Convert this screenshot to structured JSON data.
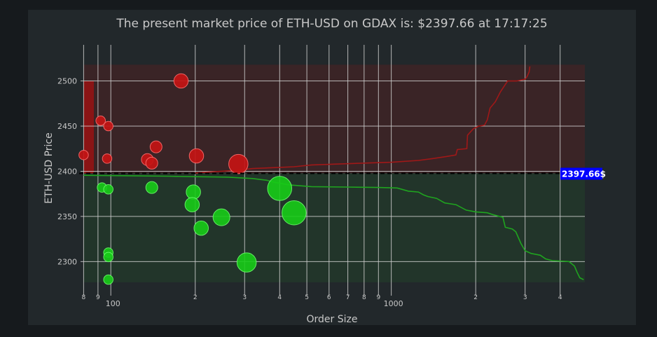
{
  "chart_data": {
    "type": "scatter",
    "title": "The present market price of ETH-USD on GDAX is: $2397.66 at 17:17:25",
    "xlabel": "Order Size",
    "ylabel": "ETH-USD Price",
    "x_scale": "log",
    "x_range": [
      78,
      4900
    ],
    "y_range": [
      2270,
      2540
    ],
    "y_ticks": [
      2300,
      2350,
      2400,
      2450,
      2500
    ],
    "x_major_ticks": [
      {
        "value": 100,
        "label": "100"
      },
      {
        "value": 1000,
        "label": "1000"
      }
    ],
    "x_minor_ticks": [
      {
        "value": 80,
        "label": "8"
      },
      {
        "value": 90,
        "label": "9"
      },
      {
        "value": 200,
        "label": "2"
      },
      {
        "value": 300,
        "label": "3"
      },
      {
        "value": 400,
        "label": "4"
      },
      {
        "value": 500,
        "label": "5"
      },
      {
        "value": 600,
        "label": "6"
      },
      {
        "value": 700,
        "label": "7"
      },
      {
        "value": 800,
        "label": "8"
      },
      {
        "value": 900,
        "label": "9"
      },
      {
        "value": 2000,
        "label": "2"
      },
      {
        "value": 3000,
        "label": "3"
      },
      {
        "value": 4000,
        "label": "4"
      }
    ],
    "market_price": 2397.66,
    "price_label": "2397.66$",
    "colors": {
      "ask": "#c41414",
      "ask_line": "#a01818",
      "bid": "#18cc18",
      "bid_line": "#1fa41f",
      "ask_zone": "#3a2426",
      "bid_zone": "#22352a",
      "label_bg": "#0000ff"
    },
    "ask_zone": {
      "y": [
        2397.66,
        2518
      ],
      "x": [
        80,
        4900
      ]
    },
    "bid_zone": {
      "y": [
        2277,
        2397.66
      ],
      "x": [
        80,
        4900
      ]
    },
    "ask_bar": {
      "x": [
        80,
        87
      ],
      "y": [
        2397.66,
        2500
      ]
    },
    "asks": [
      {
        "x": 80,
        "y": 2418,
        "size": 1
      },
      {
        "x": 92,
        "y": 2456,
        "size": 1
      },
      {
        "x": 98,
        "y": 2450,
        "size": 1
      },
      {
        "x": 97,
        "y": 2414,
        "size": 1
      },
      {
        "x": 135,
        "y": 2413,
        "size": 2
      },
      {
        "x": 140,
        "y": 2409,
        "size": 2
      },
      {
        "x": 145,
        "y": 2427,
        "size": 2
      },
      {
        "x": 178,
        "y": 2500,
        "size": 3
      },
      {
        "x": 202,
        "y": 2417,
        "size": 3
      },
      {
        "x": 285,
        "y": 2408,
        "size": 5
      }
    ],
    "bids": [
      {
        "x": 93,
        "y": 2382,
        "size": 1
      },
      {
        "x": 98,
        "y": 2380,
        "size": 1
      },
      {
        "x": 98,
        "y": 2310,
        "size": 1
      },
      {
        "x": 98,
        "y": 2305,
        "size": 1
      },
      {
        "x": 98,
        "y": 2280,
        "size": 1
      },
      {
        "x": 140,
        "y": 2382,
        "size": 2
      },
      {
        "x": 197,
        "y": 2377,
        "size": 3
      },
      {
        "x": 195,
        "y": 2363,
        "size": 3
      },
      {
        "x": 210,
        "y": 2337,
        "size": 3
      },
      {
        "x": 248,
        "y": 2349,
        "size": 4
      },
      {
        "x": 305,
        "y": 2299,
        "size": 5
      },
      {
        "x": 400,
        "y": 2381,
        "size": 7
      },
      {
        "x": 450,
        "y": 2354,
        "size": 7
      }
    ],
    "ask_line": [
      [
        195,
        2397.7
      ],
      [
        220,
        2399
      ],
      [
        280,
        2401
      ],
      [
        320,
        2403
      ],
      [
        380,
        2404
      ],
      [
        450,
        2405
      ],
      [
        520,
        2407
      ],
      [
        650,
        2408
      ],
      [
        800,
        2409
      ],
      [
        1000,
        2410
      ],
      [
        1250,
        2412
      ],
      [
        1400,
        2414
      ],
      [
        1550,
        2416
      ],
      [
        1700,
        2418
      ],
      [
        1720,
        2424
      ],
      [
        1860,
        2425
      ],
      [
        1870,
        2440
      ],
      [
        1960,
        2447
      ],
      [
        2050,
        2450
      ],
      [
        2150,
        2451
      ],
      [
        2200,
        2457
      ],
      [
        2250,
        2470
      ],
      [
        2350,
        2477
      ],
      [
        2450,
        2488
      ],
      [
        2600,
        2500
      ],
      [
        2800,
        2500
      ],
      [
        3000,
        2502
      ],
      [
        3050,
        2505
      ],
      [
        3100,
        2510
      ],
      [
        3120,
        2516
      ]
    ],
    "bid_line": [
      [
        80,
        2395.5
      ],
      [
        120,
        2395
      ],
      [
        160,
        2394.5
      ],
      [
        200,
        2394
      ],
      [
        260,
        2393.5
      ],
      [
        320,
        2392
      ],
      [
        360,
        2390
      ],
      [
        380,
        2388
      ],
      [
        430,
        2385
      ],
      [
        520,
        2383
      ],
      [
        700,
        2382.5
      ],
      [
        900,
        2382
      ],
      [
        1050,
        2381.5
      ],
      [
        1150,
        2378
      ],
      [
        1250,
        2377
      ],
      [
        1300,
        2374
      ],
      [
        1350,
        2372
      ],
      [
        1450,
        2370
      ],
      [
        1550,
        2365
      ],
      [
        1700,
        2363
      ],
      [
        1850,
        2357
      ],
      [
        2000,
        2355
      ],
      [
        2200,
        2354
      ],
      [
        2300,
        2352
      ],
      [
        2500,
        2349
      ],
      [
        2550,
        2338
      ],
      [
        2700,
        2336
      ],
      [
        2780,
        2333
      ],
      [
        2900,
        2320
      ],
      [
        3000,
        2312
      ],
      [
        3150,
        2309
      ],
      [
        3400,
        2307
      ],
      [
        3550,
        2303
      ],
      [
        3750,
        2301
      ],
      [
        4300,
        2300
      ],
      [
        4500,
        2295
      ],
      [
        4600,
        2288
      ],
      [
        4700,
        2282
      ],
      [
        4850,
        2280
      ]
    ]
  }
}
